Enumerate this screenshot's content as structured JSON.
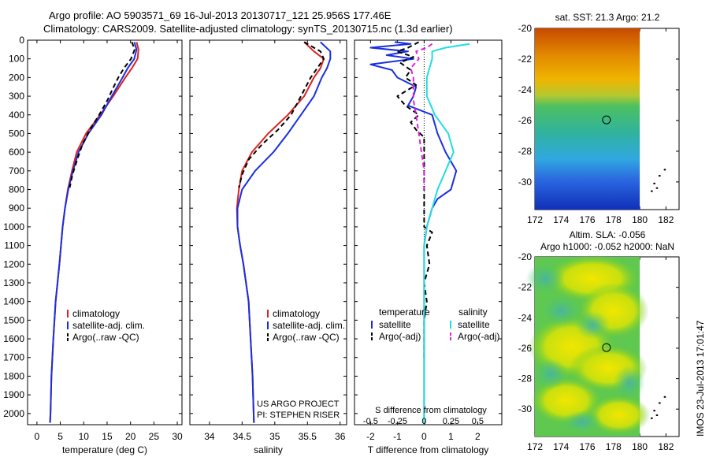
{
  "header": {
    "title_line1": "Argo profile: AO 5903571_69 16-Jul-2013 20130717_121 25.956S 177.46E",
    "title_line2": "Climatology: CARS2009. Satellite-adjusted climatology: synTS_20130715.nc (1.3d earlier)"
  },
  "depth_axis": {
    "ticks": [
      0,
      100,
      200,
      300,
      400,
      500,
      600,
      700,
      800,
      900,
      1000,
      1100,
      1200,
      1300,
      1400,
      1500,
      1600,
      1700,
      1800,
      1900,
      2000
    ],
    "range": [
      0,
      2060
    ]
  },
  "colors": {
    "climatology": "#dd2222",
    "satellite": "#1a2ee0",
    "argo": "#000000",
    "sat_salinity": "#22dddd",
    "argo_salinity": "#dd22dd"
  },
  "chart_data": [
    {
      "id": "temperature",
      "type": "line",
      "xlabel": "temperature (deg C)",
      "xlim": [
        -2,
        31
      ],
      "xticks": [
        0,
        5,
        10,
        15,
        20,
        25,
        30
      ],
      "legend": [
        "climatology",
        "satellite-adj. clim.",
        "Argo(..raw -QC)"
      ],
      "series": [
        {
          "name": "climatology",
          "style": "solid",
          "color": "#dd2222",
          "points": [
            [
              21.3,
              10
            ],
            [
              21.7,
              50
            ],
            [
              21.5,
              100
            ],
            [
              20.3,
              150
            ],
            [
              18.9,
              200
            ],
            [
              16.3,
              300
            ],
            [
              13.5,
              400
            ],
            [
              10.5,
              500
            ],
            [
              8.5,
              600
            ],
            [
              7.5,
              700
            ],
            [
              6.6,
              800
            ],
            [
              6.0,
              900
            ],
            [
              5.5,
              1000
            ],
            [
              4.8,
              1200
            ],
            [
              4.0,
              1400
            ],
            [
              3.5,
              1600
            ],
            [
              3.1,
              1800
            ],
            [
              2.9,
              2000
            ],
            [
              2.8,
              2050
            ]
          ]
        },
        {
          "name": "satellite-adj. clim.",
          "style": "solid",
          "color": "#1a2ee0",
          "points": [
            [
              20.8,
              10
            ],
            [
              21.3,
              50
            ],
            [
              20.8,
              100
            ],
            [
              19.4,
              150
            ],
            [
              18.3,
              200
            ],
            [
              16.0,
              300
            ],
            [
              13.8,
              400
            ],
            [
              11.0,
              500
            ],
            [
              8.9,
              600
            ],
            [
              7.7,
              700
            ],
            [
              6.7,
              800
            ],
            [
              6.0,
              900
            ],
            [
              5.5,
              1000
            ],
            [
              4.8,
              1200
            ],
            [
              4.0,
              1400
            ],
            [
              3.5,
              1600
            ],
            [
              3.1,
              1800
            ],
            [
              2.9,
              2000
            ],
            [
              2.8,
              2050
            ]
          ]
        },
        {
          "name": "Argo(..raw -QC)",
          "style": "dashed",
          "color": "#000000",
          "points": [
            [
              20.3,
              10
            ],
            [
              20.9,
              50
            ],
            [
              20.1,
              100
            ],
            [
              18.6,
              150
            ],
            [
              17.4,
              200
            ],
            [
              16.2,
              260
            ],
            [
              15.1,
              320
            ],
            [
              13.3,
              400
            ],
            [
              11.3,
              480
            ],
            [
              9.7,
              560
            ],
            [
              8.6,
              640
            ],
            [
              7.6,
              720
            ],
            [
              7.0,
              790
            ]
          ]
        }
      ]
    },
    {
      "id": "salinity",
      "type": "line",
      "xlabel": "salinity",
      "xlim": [
        33.7,
        36.1
      ],
      "xticks": [
        34,
        34.5,
        35,
        35.5,
        36
      ],
      "legend": [
        "climatology",
        "satellite-adj. clim.",
        "Argo(..raw -QC)"
      ],
      "annotation": [
        "US ARGO PROJECT",
        "PI: STEPHEN RISER"
      ],
      "series": [
        {
          "name": "climatology",
          "style": "solid",
          "color": "#dd2222",
          "points": [
            [
              35.45,
              10
            ],
            [
              35.6,
              60
            ],
            [
              35.75,
              100
            ],
            [
              35.7,
              150
            ],
            [
              35.6,
              200
            ],
            [
              35.45,
              300
            ],
            [
              35.2,
              400
            ],
            [
              34.9,
              500
            ],
            [
              34.65,
              600
            ],
            [
              34.5,
              700
            ],
            [
              34.45,
              800
            ],
            [
              34.42,
              900
            ],
            [
              34.43,
              1000
            ],
            [
              34.47,
              1100
            ],
            [
              34.52,
              1200
            ],
            [
              34.56,
              1300
            ],
            [
              34.6,
              1400
            ],
            [
              34.63,
              1600
            ],
            [
              34.66,
              1800
            ],
            [
              34.68,
              2050
            ]
          ]
        },
        {
          "name": "satellite-adj. clim.",
          "style": "solid",
          "color": "#1a2ee0",
          "points": [
            [
              35.7,
              10
            ],
            [
              35.85,
              60
            ],
            [
              35.85,
              100
            ],
            [
              35.8,
              150
            ],
            [
              35.72,
              200
            ],
            [
              35.6,
              300
            ],
            [
              35.4,
              400
            ],
            [
              35.2,
              500
            ],
            [
              34.98,
              600
            ],
            [
              34.7,
              700
            ],
            [
              34.5,
              800
            ],
            [
              34.43,
              900
            ],
            [
              34.43,
              1000
            ],
            [
              34.47,
              1100
            ],
            [
              34.52,
              1200
            ],
            [
              34.56,
              1300
            ],
            [
              34.6,
              1400
            ],
            [
              34.63,
              1600
            ],
            [
              34.66,
              1800
            ],
            [
              34.68,
              2050
            ]
          ]
        },
        {
          "name": "Argo(..raw -QC)",
          "style": "dashed",
          "color": "#000000",
          "points": [
            [
              35.45,
              10
            ],
            [
              35.7,
              60
            ],
            [
              35.75,
              100
            ],
            [
              35.65,
              150
            ],
            [
              35.55,
              200
            ],
            [
              35.4,
              300
            ],
            [
              35.25,
              400
            ],
            [
              35.05,
              480
            ],
            [
              34.8,
              560
            ],
            [
              34.6,
              640
            ],
            [
              34.5,
              720
            ],
            [
              34.45,
              790
            ]
          ]
        }
      ]
    },
    {
      "id": "difference",
      "type": "line",
      "xlabel": "T difference from climatology",
      "xlabel_top": "S difference from climatology",
      "xlim": [
        -2.6,
        2.9
      ],
      "xticks": [
        -2,
        -1,
        0,
        1,
        2
      ],
      "s_ticks_labels": [
        "-0.5",
        "-0.25",
        "0",
        "0.25",
        "0.5"
      ],
      "s_ticks_positions": [
        -2,
        -1,
        0,
        1,
        2
      ],
      "legend_headers": [
        "temperature",
        "salinity"
      ],
      "legend": [
        "satellite",
        "Argo(-adj)",
        "satellite",
        "Argo(-adj)"
      ],
      "series": [
        {
          "name": "satellite",
          "group": "temperature",
          "style": "solid",
          "color": "#1a2ee0",
          "points": [
            [
              -1.1,
              10
            ],
            [
              -0.5,
              20
            ],
            [
              -2.0,
              40
            ],
            [
              -0.6,
              60
            ],
            [
              -1.4,
              80
            ],
            [
              -0.4,
              100
            ],
            [
              -2.0,
              130
            ],
            [
              -1.2,
              160
            ],
            [
              -1.0,
              200
            ],
            [
              -0.3,
              250
            ],
            [
              -0.4,
              300
            ],
            [
              -0.6,
              350
            ],
            [
              0.3,
              400
            ],
            [
              0.5,
              500
            ],
            [
              0.8,
              600
            ],
            [
              1.2,
              700
            ],
            [
              1.0,
              800
            ],
            [
              0.5,
              850
            ],
            [
              0.3,
              900
            ],
            [
              0.1,
              1000
            ],
            [
              0.0,
              1100
            ],
            [
              0.0,
              2050
            ]
          ]
        },
        {
          "name": "Argo(-adj)",
          "group": "temperature",
          "style": "dashed",
          "color": "#000000",
          "points": [
            [
              -0.2,
              10
            ],
            [
              -0.6,
              40
            ],
            [
              -1.0,
              60
            ],
            [
              -0.4,
              90
            ],
            [
              -0.9,
              120
            ],
            [
              -0.5,
              160
            ],
            [
              -0.7,
              200
            ],
            [
              -0.3,
              240
            ],
            [
              -1.0,
              300
            ],
            [
              -0.7,
              350
            ],
            [
              -0.2,
              400
            ],
            [
              -0.5,
              440
            ],
            [
              -0.3,
              480
            ],
            [
              0.0,
              520
            ],
            [
              0.0,
              1000
            ],
            [
              0.3,
              1030
            ],
            [
              0.1,
              1100
            ],
            [
              0.2,
              1200
            ],
            [
              0.0,
              1300
            ],
            [
              0.1,
              1400
            ],
            [
              0.0,
              1500
            ],
            [
              0.0,
              1700
            ]
          ]
        },
        {
          "name": "satellite",
          "group": "salinity",
          "style": "solid",
          "color": "#22dddd",
          "points": [
            [
              1.7,
              20
            ],
            [
              0.8,
              40
            ],
            [
              0.3,
              60
            ],
            [
              0.3,
              100
            ],
            [
              0.2,
              150
            ],
            [
              0.1,
              200
            ],
            [
              0.1,
              300
            ],
            [
              0.4,
              400
            ],
            [
              0.9,
              500
            ],
            [
              1.1,
              600
            ],
            [
              0.8,
              700
            ],
            [
              0.5,
              800
            ],
            [
              0.3,
              900
            ],
            [
              0.1,
              1000
            ],
            [
              0.0,
              1100
            ],
            [
              0.0,
              2050
            ]
          ]
        },
        {
          "name": "Argo(-adj)",
          "group": "salinity",
          "style": "dashed",
          "color": "#dd22dd",
          "points": [
            [
              0.3,
              20
            ],
            [
              0.1,
              40
            ],
            [
              -0.3,
              60
            ],
            [
              -0.2,
              100
            ],
            [
              -0.5,
              150
            ],
            [
              -0.4,
              200
            ],
            [
              -0.4,
              260
            ],
            [
              -0.4,
              320
            ],
            [
              -0.3,
              400
            ],
            [
              -0.2,
              500
            ],
            [
              -0.1,
              600
            ],
            [
              0.0,
              700
            ],
            [
              0.0,
              800
            ]
          ]
        }
      ]
    },
    {
      "id": "sst_map",
      "type": "heatmap",
      "title": "sat. SST: 21.3 Argo: 21.2",
      "xticks": [
        172,
        174,
        176,
        178,
        180,
        182
      ],
      "yticks": [
        -20,
        -22,
        -24,
        -26,
        -28,
        -30
      ],
      "xlim": [
        172,
        183
      ],
      "ylim": [
        -31.8,
        -20
      ],
      "data_xlim": [
        172,
        180
      ],
      "marker": [
        177.46,
        -25.956
      ]
    },
    {
      "id": "sla_map",
      "type": "heatmap",
      "title_line1": "Altim. SLA: -0.056",
      "title_line2": "Argo h1000: -0.052 h2000: NaN",
      "xticks": [
        172,
        174,
        176,
        178,
        180,
        182
      ],
      "yticks": [
        -20,
        -22,
        -24,
        -26,
        -28,
        -30
      ],
      "xlim": [
        172,
        183
      ],
      "ylim": [
        -31.8,
        -20
      ],
      "data_xlim": [
        172,
        180
      ],
      "marker": [
        177.46,
        -25.956
      ]
    }
  ],
  "side_label": "IMOS 23-Jul-2013 17:01:47"
}
